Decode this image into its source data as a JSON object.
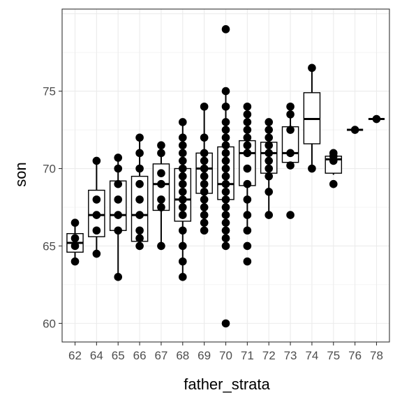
{
  "chart_data": {
    "type": "boxplot",
    "xlabel": "father_strata",
    "ylabel": "son",
    "categories": [
      "62",
      "64",
      "65",
      "66",
      "67",
      "68",
      "69",
      "70",
      "71",
      "72",
      "73",
      "74",
      "75",
      "76",
      "78"
    ],
    "ylim": [
      58.8,
      80.3
    ],
    "yticks": [
      60,
      65,
      70,
      75
    ],
    "grid": true,
    "legend": "none",
    "boxes": [
      {
        "category": "62",
        "min": 64.0,
        "q1": 64.6,
        "median": 65.2,
        "q3": 65.8,
        "max": 66.5
      },
      {
        "category": "64",
        "min": 64.5,
        "q1": 65.6,
        "median": 67.0,
        "q3": 68.6,
        "max": 70.5
      },
      {
        "category": "65",
        "min": 63.0,
        "q1": 66.0,
        "median": 67.0,
        "q3": 69.2,
        "max": 70.7
      },
      {
        "category": "66",
        "min": 65.0,
        "q1": 65.3,
        "median": 67.0,
        "q3": 69.5,
        "max": 72.0
      },
      {
        "category": "67",
        "min": 65.0,
        "q1": 67.3,
        "median": 69.0,
        "q3": 70.3,
        "max": 71.5
      },
      {
        "category": "68",
        "min": 63.0,
        "q1": 66.6,
        "median": 68.0,
        "q3": 70.0,
        "max": 73.0
      },
      {
        "category": "69",
        "min": 66.0,
        "q1": 68.4,
        "median": 70.0,
        "q3": 71.0,
        "max": 74.0
      },
      {
        "category": "70",
        "min": 65.0,
        "q1": 68.0,
        "median": 69.0,
        "q3": 71.4,
        "max": 75.0
      },
      {
        "category": "71",
        "min": 66.0,
        "q1": 68.9,
        "median": 71.0,
        "q3": 71.8,
        "max": 74.0
      },
      {
        "category": "72",
        "min": 67.0,
        "q1": 69.7,
        "median": 71.0,
        "q3": 71.7,
        "max": 73.0
      },
      {
        "category": "73",
        "min": 70.0,
        "q1": 70.4,
        "median": 71.0,
        "q3": 72.7,
        "max": 74.0
      },
      {
        "category": "74",
        "min": 70.0,
        "q1": 71.6,
        "median": 73.2,
        "q3": 74.9,
        "max": 76.5
      },
      {
        "category": "75",
        "min": 69.6,
        "q1": 69.7,
        "median": 70.6,
        "q3": 70.8,
        "max": 71.0
      },
      {
        "category": "76",
        "min": 72.5,
        "q1": 72.5,
        "median": 72.5,
        "q3": 72.5,
        "max": 72.5
      },
      {
        "category": "78",
        "min": 73.2,
        "q1": 73.2,
        "median": 73.2,
        "q3": 73.2,
        "max": 73.2
      }
    ],
    "points": [
      {
        "category": "62",
        "values": [
          64.0,
          65.0,
          65.5,
          66.5
        ]
      },
      {
        "category": "64",
        "values": [
          64.5,
          66.0,
          67.0,
          68.0,
          70.5
        ]
      },
      {
        "category": "65",
        "values": [
          63.0,
          66.0,
          67.0,
          68.0,
          69.0,
          70.0,
          70.7
        ]
      },
      {
        "category": "66",
        "values": [
          65.0,
          65.5,
          66.0,
          67.0,
          68.0,
          69.0,
          70.0,
          71.0,
          72.0
        ]
      },
      {
        "category": "67",
        "values": [
          65.0,
          67.5,
          68.0,
          69.0,
          69.7,
          71.0,
          71.5
        ]
      },
      {
        "category": "68",
        "values": [
          63.0,
          64.0,
          65.0,
          66.0,
          67.0,
          67.5,
          68.0,
          68.5,
          69.0,
          69.5,
          70.0,
          70.5,
          71.0,
          71.5,
          72.0,
          73.0
        ]
      },
      {
        "category": "69",
        "values": [
          66.0,
          66.5,
          67.0,
          67.5,
          68.0,
          68.5,
          69.0,
          69.5,
          70.0,
          70.5,
          71.0,
          72.0,
          74.0
        ]
      },
      {
        "category": "70",
        "values": [
          60.0,
          65.0,
          65.5,
          66.0,
          66.5,
          67.0,
          67.5,
          68.0,
          68.5,
          69.0,
          69.5,
          70.0,
          70.5,
          71.0,
          71.5,
          72.0,
          72.5,
          73.0,
          74.0,
          75.0,
          79.0
        ]
      },
      {
        "category": "71",
        "values": [
          64.0,
          65.0,
          66.0,
          67.0,
          68.0,
          69.0,
          70.0,
          71.0,
          71.5,
          72.0,
          72.5,
          73.0,
          73.5,
          74.0
        ]
      },
      {
        "category": "72",
        "values": [
          67.0,
          68.5,
          69.5,
          70.0,
          70.5,
          71.0,
          71.5,
          72.0,
          72.5,
          73.0
        ]
      },
      {
        "category": "73",
        "values": [
          67.0,
          70.2,
          71.0,
          72.5,
          73.5,
          74.0
        ]
      },
      {
        "category": "74",
        "values": [
          70.0,
          76.5
        ]
      },
      {
        "category": "75",
        "values": [
          69.0,
          70.5,
          70.8,
          71.0
        ]
      },
      {
        "category": "76",
        "values": [
          72.5
        ]
      },
      {
        "category": "78",
        "values": [
          73.2
        ]
      }
    ]
  }
}
